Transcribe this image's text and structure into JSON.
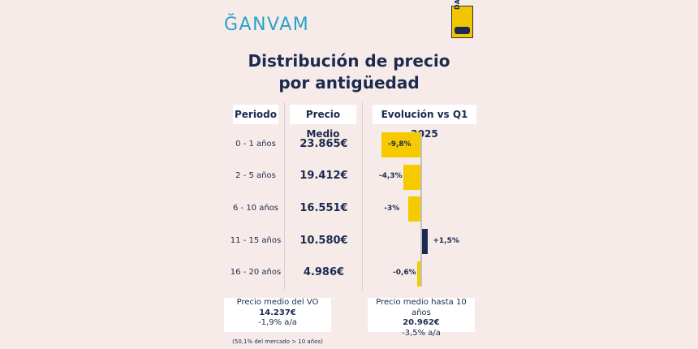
{
  "brand": {
    "logo": "ĞANVAM",
    "dat": "DAT"
  },
  "title_line1": "Distribución de precio",
  "title_line2": "por antigüedad",
  "headers": {
    "period": "Periodo",
    "price": "Precio Medio",
    "evolution": "Evolución vs Q1 2025"
  },
  "colors": {
    "negative": "#f5cb00",
    "positive": "#1b2b4f"
  },
  "chart_data": {
    "type": "bar",
    "categories": [
      "0 - 1 años",
      "2 - 5 años",
      "6 - 10 años",
      "11 - 15 años",
      "16 - 20 años"
    ],
    "prices": [
      "23.865€",
      "19.412€",
      "16.551€",
      "10.580€",
      "4.986€"
    ],
    "values": [
      -9.8,
      -4.3,
      -3,
      1.5,
      -0.6
    ],
    "value_labels": [
      "-9,8%",
      "-4,3%",
      "-3%",
      "+1,5%",
      "-0,6%"
    ],
    "title": "Distribución de precio por antigüedad"
  },
  "summary": {
    "vo": {
      "label": "Precio medio del VO",
      "value": "14.237€",
      "change": "-1,9% a/a"
    },
    "ten": {
      "label": "Precio medio hasta 10 años",
      "value": "20.962€",
      "change": "-3,5% a/a"
    }
  },
  "footnote": "(50,1% del mercado > 10 años)"
}
